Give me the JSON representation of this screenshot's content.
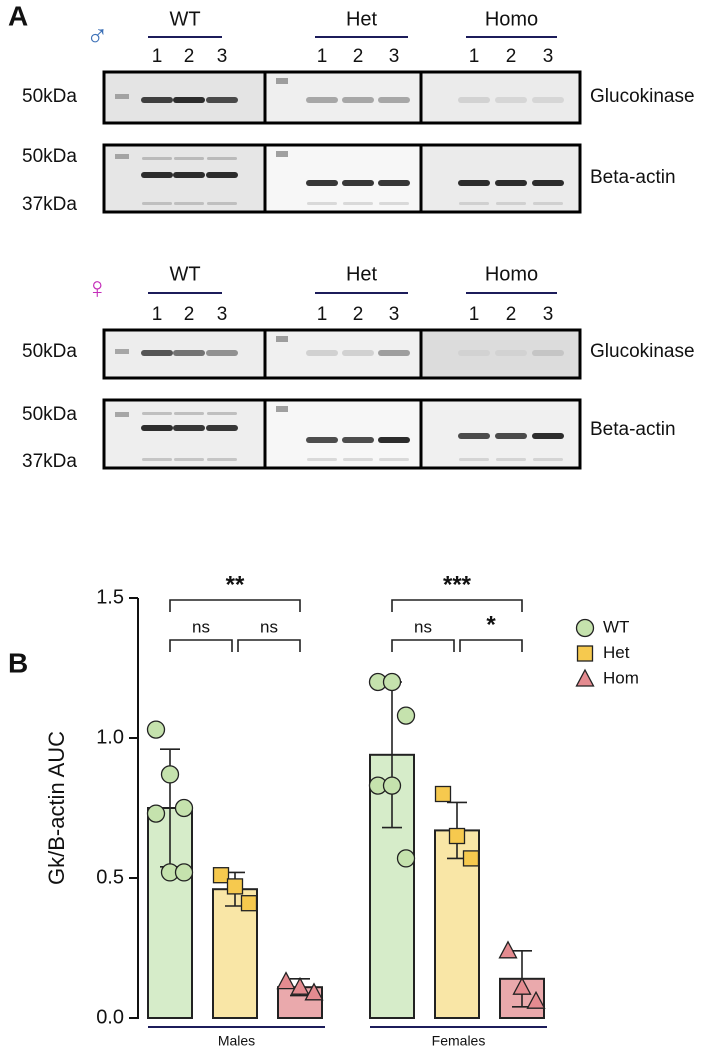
{
  "panel_a": {
    "label": "A",
    "rows": [
      {
        "symbol": "♂",
        "symbol_color": "#3b6fb6",
        "groups": [
          {
            "name": "WT",
            "lanes": [
              "1",
              "2",
              "3"
            ]
          },
          {
            "name": "Het",
            "lanes": [
              "1",
              "2",
              "3"
            ]
          },
          {
            "name": "Homo",
            "lanes": [
              "1",
              "2",
              "3"
            ]
          }
        ],
        "blots": [
          {
            "protein": "Glucokinase",
            "markers": [
              "50kDa"
            ]
          },
          {
            "protein": "Beta-actin",
            "markers": [
              "50kDa",
              "37kDa"
            ]
          }
        ]
      },
      {
        "symbol": "♀",
        "symbol_color": "#c42db9",
        "groups": [
          {
            "name": "WT",
            "lanes": [
              "1",
              "2",
              "3"
            ]
          },
          {
            "name": "Het",
            "lanes": [
              "1",
              "2",
              "3"
            ]
          },
          {
            "name": "Homo",
            "lanes": [
              "1",
              "2",
              "3"
            ]
          }
        ],
        "blots": [
          {
            "protein": "Glucokinase",
            "markers": [
              "50kDa"
            ]
          },
          {
            "protein": "Beta-actin",
            "markers": [
              "50kDa",
              "37kDa"
            ]
          }
        ]
      }
    ]
  },
  "panel_b_label": "B",
  "chart_data": {
    "type": "bar",
    "ylabel": "Gk/B-actin AUC",
    "categories": [
      "Males",
      "Females"
    ],
    "ylim": [
      0,
      1.5
    ],
    "yticks": [
      {
        "value": 0,
        "label": "0.0"
      },
      {
        "value": 0.5,
        "label": "0.5"
      },
      {
        "value": 1,
        "label": "1.0"
      },
      {
        "value": 1.5,
        "label": "1.5"
      }
    ],
    "grid": false,
    "legend": "right",
    "series": [
      {
        "name": "WT",
        "color": "#d6ecc9",
        "marker_color": "#c5e2ad",
        "marker": "circle",
        "values": [
          0.75,
          0.94
        ],
        "errors": [
          0.21,
          0.26
        ],
        "points": [
          [
            1.03,
            0.87,
            0.75,
            0.73,
            0.52,
            0.52
          ],
          [
            1.2,
            1.2,
            1.08,
            0.83,
            0.83,
            0.57
          ]
        ]
      },
      {
        "name": "Het",
        "color": "#f9e6a6",
        "marker_color": "#f6c94e",
        "marker": "square",
        "values": [
          0.46,
          0.67
        ],
        "errors": [
          0.06,
          0.1
        ],
        "points": [
          [
            0.51,
            0.47,
            0.41
          ],
          [
            0.8,
            0.65,
            0.57
          ]
        ]
      },
      {
        "name": "Hom",
        "color": "#eaa9ac",
        "marker_color": "#e48b90",
        "marker": "triangle",
        "values": [
          0.11,
          0.14
        ],
        "errors": [
          0.03,
          0.1
        ],
        "points": [
          [
            0.13,
            0.11,
            0.09
          ],
          [
            0.24,
            0.11,
            0.06
          ]
        ]
      }
    ],
    "significance": [
      [
        "**",
        "ns",
        "ns"
      ],
      [
        "***",
        "ns",
        "*"
      ]
    ]
  }
}
